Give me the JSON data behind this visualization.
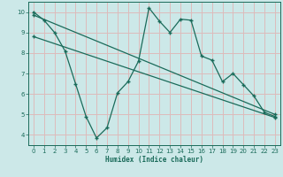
{
  "xlabel": "Humidex (Indice chaleur)",
  "bg_color": "#cce8e8",
  "grid_color": "#ddbbbb",
  "line_color": "#1a6b5a",
  "xlim": [
    -0.5,
    23.5
  ],
  "ylim": [
    3.5,
    10.5
  ],
  "xticks": [
    0,
    1,
    2,
    3,
    4,
    5,
    6,
    7,
    8,
    9,
    10,
    11,
    12,
    13,
    14,
    15,
    16,
    17,
    18,
    19,
    20,
    21,
    22,
    23
  ],
  "yticks": [
    4,
    5,
    6,
    7,
    8,
    9,
    10
  ],
  "line1_x": [
    0,
    1,
    2,
    3,
    4,
    5,
    6,
    7,
    8,
    9,
    10,
    11,
    12,
    13,
    14,
    15,
    16,
    17,
    18,
    19,
    20,
    21,
    22,
    23
  ],
  "line1_y": [
    10.0,
    9.6,
    9.0,
    8.1,
    6.5,
    4.9,
    3.85,
    4.35,
    6.05,
    6.6,
    7.6,
    10.2,
    9.55,
    9.0,
    9.65,
    9.6,
    7.85,
    7.65,
    6.6,
    7.0,
    6.45,
    5.9,
    5.1,
    4.9
  ],
  "line2_x": [
    0,
    23
  ],
  "line2_y": [
    9.85,
    5.0
  ],
  "line3_x": [
    0,
    23
  ],
  "line3_y": [
    8.8,
    4.85
  ]
}
